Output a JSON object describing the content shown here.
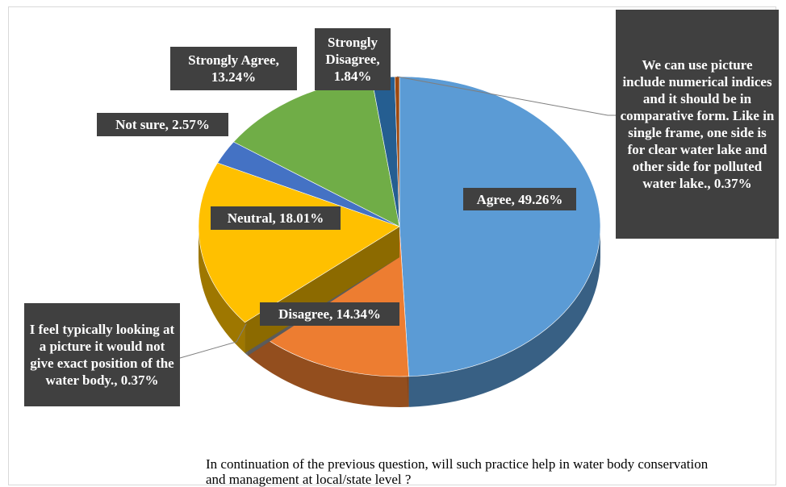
{
  "chart_data": {
    "type": "pie",
    "title": "In continuation of the previous question, will such practice  help in water body conservation and management at local/state level ?",
    "labels": [
      "Agree, 49.26%",
      "Disagree, 14.34%",
      "I feel typically looking at a picture it would not give exact position of the water body., 0.37%",
      "Neutral, 18.01%",
      "Not sure, 2.57%",
      "Strongly Agree, 13.24%",
      "Strongly Disagree, 1.84%",
      "We can use picture include numerical indices and it should be in comparative form. Like in single frame, one side is for clear water lake and other side for polluted water lake., 0.37%"
    ],
    "values": [
      49.26,
      14.34,
      0.37,
      18.01,
      2.57,
      13.24,
      1.84,
      0.37
    ],
    "colors": [
      "#5b9bd5",
      "#ed7d31",
      "#a5a5a5",
      "#ffc000",
      "#4472c4",
      "#70ad47",
      "#255e91",
      "#9e480e"
    ]
  }
}
